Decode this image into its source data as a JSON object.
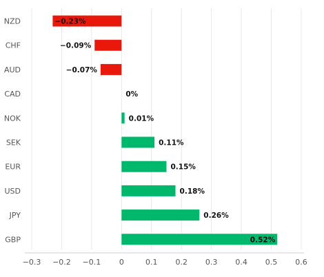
{
  "chart_data": {
    "type": "bar",
    "orientation": "horizontal",
    "categories": [
      "NZD",
      "CHF",
      "AUD",
      "CAD",
      "NOK",
      "SEK",
      "EUR",
      "USD",
      "JPY",
      "GBP"
    ],
    "values": [
      -0.23,
      -0.09,
      -0.07,
      0,
      0.01,
      0.11,
      0.15,
      0.18,
      0.26,
      0.52
    ],
    "value_labels": [
      "−0.23%",
      "−0.09%",
      "−0.07%",
      "0%",
      "0.01%",
      "0.11%",
      "0.15%",
      "0.18%",
      "0.26%",
      "0.52%"
    ],
    "xlim": [
      -0.3,
      0.6
    ],
    "xticks": [
      -0.3,
      -0.2,
      -0.1,
      0,
      0.1,
      0.2,
      0.3,
      0.4,
      0.5,
      0.6
    ],
    "xtick_labels": [
      "−0.3",
      "−0.2",
      "−0.1",
      "0",
      "0.1",
      "0.2",
      "0.3",
      "0.4",
      "0.5",
      "0.6"
    ],
    "grid": "vertical",
    "colors": {
      "positive": "#00b86b",
      "negative": "#e8190b"
    }
  }
}
